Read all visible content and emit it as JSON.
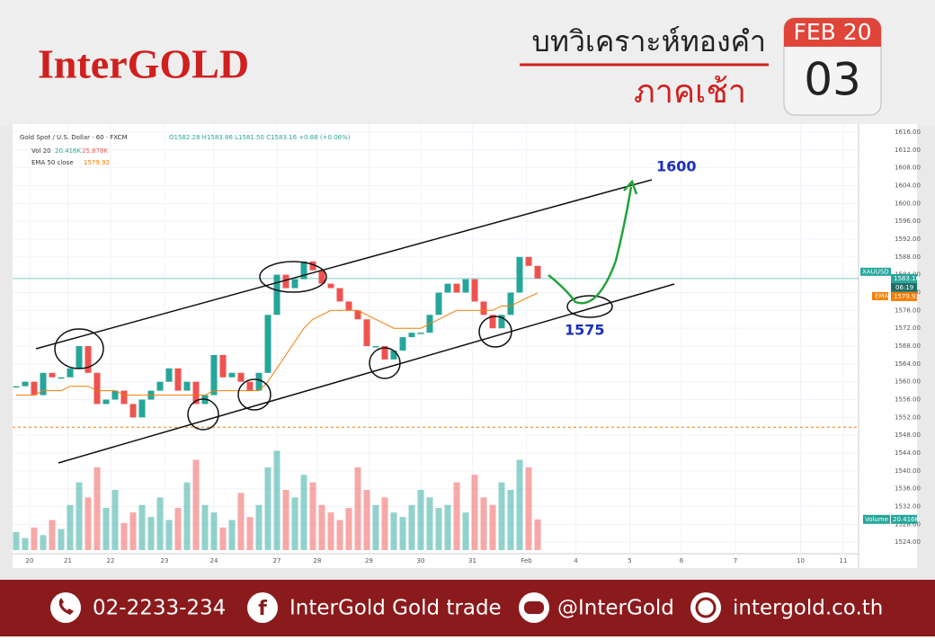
{
  "header": {
    "brand": "InterGOLD",
    "title": "บทวิเคราะห์ทองคำ",
    "subtitle": "ภาคเช้า",
    "date": {
      "month_year": "FEB 20",
      "day": "03"
    }
  },
  "chart_data": {
    "type": "candlestick",
    "title": "Gold Spot / U.S. Dollar · 60 · FXCM",
    "ohlc_text": "O1582.28 H1583.86 L1581.50 C1583.16 +0.88 (+0.06%)",
    "volume_legend": {
      "name": "Vol 20",
      "value": "20.416K",
      "average": "25.878K"
    },
    "ema_legend": {
      "name": "EMA 50 close",
      "value": 1579.92
    },
    "up_color": "#26a69a",
    "down_color": "#ef5350",
    "ema_color": "#f57c00",
    "x": [
      0,
      4,
      8,
      12,
      16,
      20,
      24,
      28,
      32,
      36,
      40,
      44,
      48,
      52,
      56,
      60,
      64,
      68,
      72,
      76,
      80,
      84,
      88,
      92,
      96,
      100,
      104,
      108,
      112,
      116,
      120,
      124,
      128,
      132,
      136,
      140,
      144,
      148,
      152,
      156,
      160,
      164,
      168,
      172,
      176,
      180,
      184,
      188,
      192,
      196,
      200,
      204,
      208,
      212,
      216,
      220,
      224,
      228,
      232
    ],
    "close": [
      1559,
      1560,
      1557,
      1562,
      1561,
      1561,
      1563,
      1568,
      1562,
      1555,
      1556,
      1558,
      1555,
      1552,
      1556,
      1558,
      1560,
      1563,
      1558,
      1560,
      1555,
      1557,
      1566,
      1561,
      1562,
      1560,
      1558,
      1562,
      1575,
      1584,
      1581,
      1583,
      1587,
      1585,
      1582,
      1581,
      1578,
      1576,
      1574,
      1568,
      1568,
      1565,
      1567,
      1570,
      1571,
      1571,
      1575,
      1580,
      1582,
      1580,
      1583,
      1578,
      1575,
      1572,
      1575,
      1580,
      1588,
      1586,
      1583.16
    ],
    "ema": [
      1557,
      1557,
      1557,
      1558,
      1558,
      1558,
      1559,
      1559,
      1559,
      1558,
      1558,
      1558,
      1557,
      1557,
      1557,
      1557,
      1557,
      1557,
      1557,
      1557,
      1557,
      1557,
      1558,
      1558,
      1558,
      1558,
      1558,
      1558,
      1560,
      1563,
      1566,
      1569,
      1572,
      1574,
      1575,
      1576,
      1576,
      1576,
      1576,
      1575,
      1574,
      1573,
      1572,
      1572,
      1572,
      1572,
      1573,
      1574,
      1575,
      1576,
      1576,
      1576,
      1576,
      1576,
      1577,
      1577,
      1578,
      1579,
      1579.92
    ],
    "volume": [
      12,
      8,
      15,
      10,
      20,
      14,
      30,
      45,
      35,
      55,
      28,
      40,
      18,
      25,
      30,
      22,
      35,
      20,
      28,
      45,
      60,
      30,
      25,
      15,
      20,
      38,
      22,
      30,
      55,
      66,
      40,
      35,
      50,
      45,
      30,
      25,
      20,
      28,
      55,
      40,
      30,
      35,
      25,
      22,
      30,
      40,
      35,
      28,
      30,
      45,
      25,
      50,
      35,
      30,
      45,
      40,
      60,
      55,
      20.416
    ],
    "volume_ylim": [
      0,
      280
    ],
    "xlim": [
      0,
      375
    ],
    "xticks": [
      {
        "value": 6,
        "label": "20"
      },
      {
        "value": 23,
        "label": "21"
      },
      {
        "value": 42,
        "label": "22"
      },
      {
        "value": 66,
        "label": "23"
      },
      {
        "value": 88,
        "label": "24"
      },
      {
        "value": 116,
        "label": "27"
      },
      {
        "value": 134,
        "label": "28"
      },
      {
        "value": 157,
        "label": "29"
      },
      {
        "value": 180,
        "label": "30"
      },
      {
        "value": 203,
        "label": "31"
      },
      {
        "value": 227,
        "label": "Feb"
      },
      {
        "value": 249,
        "label": "4"
      },
      {
        "value": 273,
        "label": "5"
      },
      {
        "value": 296,
        "label": "6"
      },
      {
        "value": 320,
        "label": "7"
      },
      {
        "value": 349,
        "label": "10"
      },
      {
        "value": 368,
        "label": "11"
      }
    ],
    "ylim": [
      1518.2,
      1616.8
    ],
    "yticks": [
      {
        "value": 1616,
        "label": "1616.00"
      },
      {
        "value": 1612,
        "label": "1612.00"
      },
      {
        "value": 1608,
        "label": "1608.00"
      },
      {
        "value": 1604,
        "label": "1604.00"
      },
      {
        "value": 1600,
        "label": "1600.00"
      },
      {
        "value": 1596,
        "label": "1596.00"
      },
      {
        "value": 1592,
        "label": "1592.00"
      },
      {
        "value": 1588,
        "label": "1588.00"
      },
      {
        "value": 1584,
        "label": "1584.00"
      },
      {
        "value": 1580,
        "label": "1580.00"
      },
      {
        "value": 1576,
        "label": "1576.00"
      },
      {
        "value": 1572,
        "label": "1572.00"
      },
      {
        "value": 1568,
        "label": "1568.00"
      },
      {
        "value": 1564,
        "label": "1564.00"
      },
      {
        "value": 1560,
        "label": "1560.00"
      },
      {
        "value": 1556,
        "label": "1556.00"
      },
      {
        "value": 1552,
        "label": "1552.00"
      },
      {
        "value": 1548,
        "label": "1548.00"
      },
      {
        "value": 1544,
        "label": "1544.00"
      },
      {
        "value": 1540,
        "label": "1540.00"
      },
      {
        "value": 1536,
        "label": "1536.00"
      },
      {
        "value": 1532,
        "label": "1532.00"
      },
      {
        "value": 1528,
        "label": "1528.00"
      },
      {
        "value": 1524,
        "label": "1524.00"
      }
    ],
    "grid": true,
    "last_price": {
      "symbol": "XAUUSD",
      "value": 1583.16,
      "countdown": "06:19"
    },
    "ema_tag": "EMA",
    "volume_tag": {
      "name": "Volume",
      "value": "20.416K"
    },
    "dashed_level": 1549.8,
    "annotations": {
      "target": 1600,
      "support": 1575
    }
  },
  "footer": {
    "phone": "02-2233-234",
    "facebook": "InterGold Gold trade",
    "line": "@InterGold",
    "website": "intergold.co.th"
  }
}
